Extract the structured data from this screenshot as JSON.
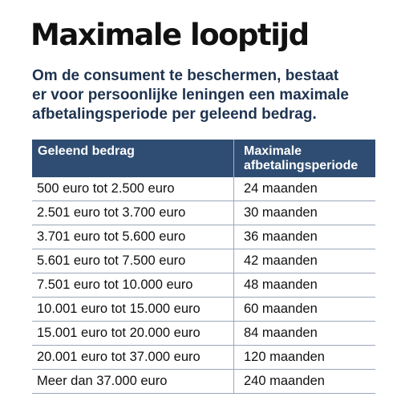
{
  "title": "Maximale looptijd",
  "intro_lines": [
    "Om de consument te beschermen, bestaat",
    "er voor persoonlijke leningen een maximale",
    "afbetalingsperiode per geleend bedrag."
  ],
  "table": {
    "headers": {
      "amount": "Geleend bedrag",
      "period_line1": "Maximale",
      "period_line2": "afbetalingsperiode"
    },
    "rows": [
      {
        "amount": "500 euro tot 2.500 euro",
        "period": "24 maanden"
      },
      {
        "amount": "2.501 euro tot 3.700 euro",
        "period": "30 maanden"
      },
      {
        "amount": "3.701 euro tot 5.600 euro",
        "period": "36 maanden"
      },
      {
        "amount": "5.601 euro tot 7.500 euro",
        "period": "42 maanden"
      },
      {
        "amount": "7.501 euro tot 10.000 euro",
        "period": "48 maanden"
      },
      {
        "amount": "10.001 euro tot 15.000 euro",
        "period": "60 maanden"
      },
      {
        "amount": "15.001 euro tot 20.000 euro",
        "period": "84 maanden"
      },
      {
        "amount": "20.001 euro tot 37.000 euro",
        "period": "120 maanden"
      },
      {
        "amount": "Meer dan 37.000 euro",
        "period": "240 maanden"
      }
    ]
  },
  "colors": {
    "header_bg": "#2f4d72",
    "intro_text": "#1e3350",
    "title_text": "#111111",
    "row_border": "#9aa7b8"
  }
}
